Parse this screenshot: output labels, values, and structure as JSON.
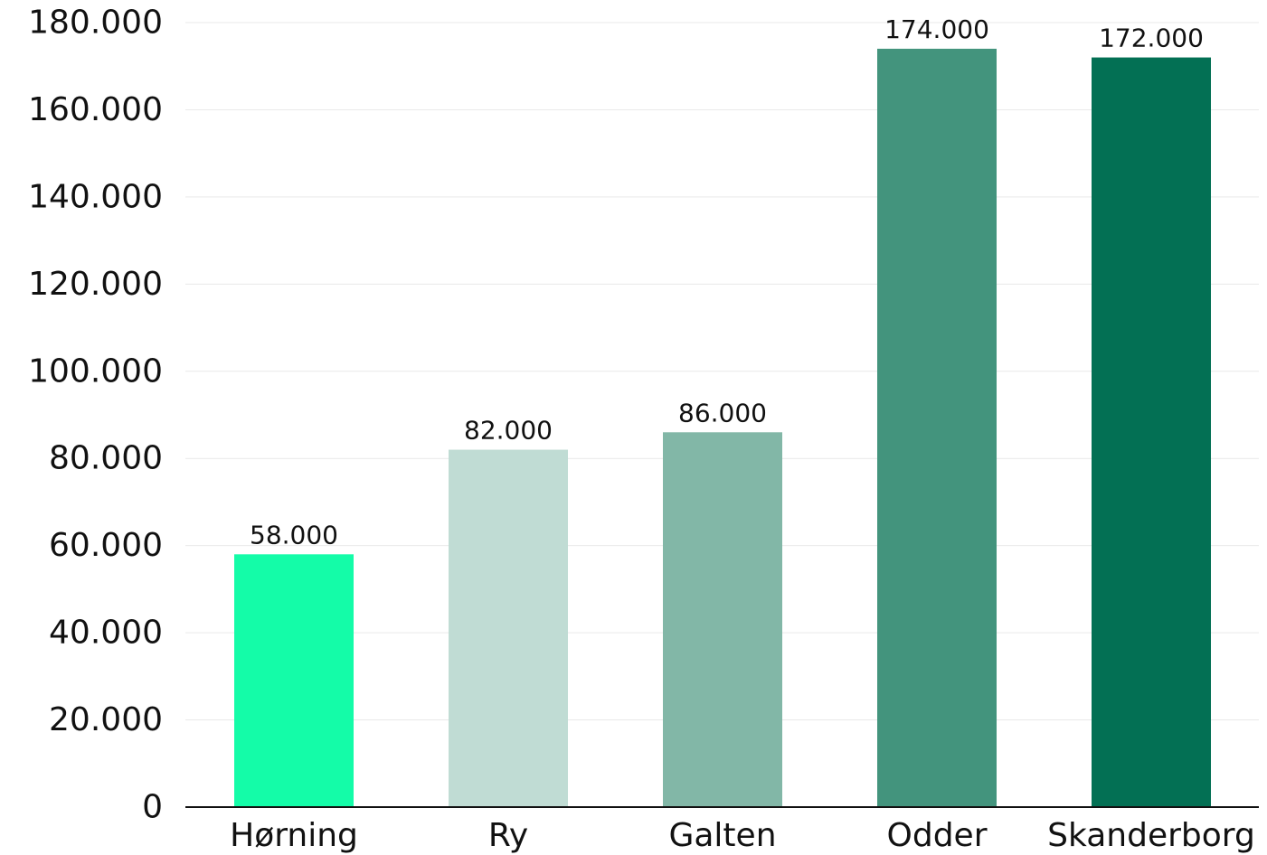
{
  "chart_data": {
    "type": "bar",
    "title": "",
    "xlabel": "",
    "ylabel": "",
    "categories": [
      "Hørning",
      "Ry",
      "Galten",
      "Odder",
      "Skanderborg"
    ],
    "values": [
      58000,
      82000,
      86000,
      174000,
      172000
    ],
    "value_labels": [
      "58.000",
      "82.000",
      "86.000",
      "174.000",
      "172.000"
    ],
    "colors": [
      "#14fca8",
      "#c0dcd4",
      "#82b7a7",
      "#43947d",
      "#037054"
    ],
    "ylim": [
      0,
      180000
    ],
    "yticks": [
      0,
      20000,
      40000,
      60000,
      80000,
      100000,
      120000,
      140000,
      160000,
      180000
    ],
    "ytick_labels": [
      "0",
      "20.000",
      "40.000",
      "60.000",
      "80.000",
      "100.000",
      "120.000",
      "140.000",
      "160.000",
      "180.000"
    ],
    "grid": true,
    "legend": "none"
  }
}
